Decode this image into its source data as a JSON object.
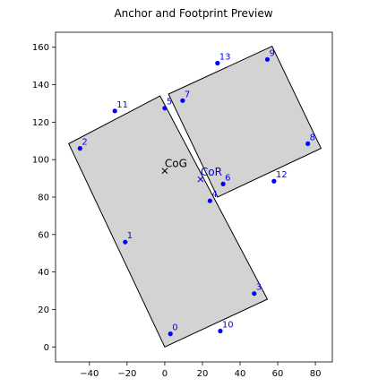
{
  "chart_data": {
    "type": "scatter",
    "title": "Anchor and Footprint Preview",
    "xlabel": "",
    "ylabel": "",
    "xlim": [
      -58,
      89
    ],
    "ylim": [
      -8,
      168
    ],
    "xticks": [
      -40,
      -20,
      0,
      20,
      40,
      60,
      80
    ],
    "yticks": [
      0,
      20,
      40,
      60,
      80,
      100,
      120,
      140,
      160
    ],
    "grid": false,
    "polygons": [
      {
        "points": [
          [
            0,
            0
          ],
          [
            54.5,
            25.5
          ],
          [
            -2.5,
            134
          ],
          [
            -51,
            108.5
          ]
        ]
      },
      {
        "points": [
          [
            2,
            135
          ],
          [
            57,
            160.5
          ],
          [
            83,
            106
          ],
          [
            28,
            80
          ]
        ]
      }
    ],
    "points": [
      {
        "label": "0",
        "x": 3,
        "y": 7
      },
      {
        "label": "1",
        "x": -21,
        "y": 56
      },
      {
        "label": "2",
        "x": -45,
        "y": 106
      },
      {
        "label": "3",
        "x": 47.5,
        "y": 28.5
      },
      {
        "label": "4",
        "x": 24,
        "y": 78
      },
      {
        "label": "5",
        "x": 0,
        "y": 127.5
      },
      {
        "label": "6",
        "x": 31,
        "y": 87
      },
      {
        "label": "7",
        "x": 9.5,
        "y": 131.5
      },
      {
        "label": "8",
        "x": 76,
        "y": 108.5
      },
      {
        "label": "9",
        "x": 54.5,
        "y": 153.5
      },
      {
        "label": "10",
        "x": 29.5,
        "y": 8.5
      },
      {
        "label": "11",
        "x": -26.5,
        "y": 126
      },
      {
        "label": "12",
        "x": 58,
        "y": 88.5
      },
      {
        "label": "13",
        "x": 28,
        "y": 151.5
      }
    ],
    "annotations": [
      {
        "label": "CoG",
        "x": 0,
        "y": 94,
        "color": "#000000"
      },
      {
        "label": "CoR",
        "x": 19,
        "y": 89.5,
        "color": "#0000ff"
      }
    ],
    "colors": {
      "points": "#0000ff",
      "polygon_fill": "#d3d3d3",
      "polygon_edge": "#000000"
    }
  }
}
